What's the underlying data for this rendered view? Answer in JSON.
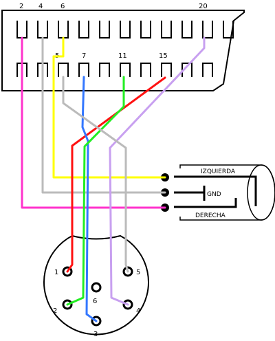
{
  "scart": {
    "top_pins": [
      "2",
      "4",
      "6",
      "20"
    ],
    "bottom_pins": [
      "5",
      "7",
      "11",
      "15"
    ]
  },
  "jack": {
    "left_label": "IZQUIERDA",
    "gnd_label": "GND",
    "right_label": "DERECHA"
  },
  "din": {
    "pins": [
      "1",
      "2",
      "3",
      "4",
      "5",
      "6"
    ]
  },
  "colors": {
    "magenta": "#ff33cc",
    "gray": "#bbbbbb",
    "yellow": "#ffff00",
    "red": "#ff1111",
    "blue": "#3377ff",
    "green": "#22ee22",
    "violet": "#c8a0f0",
    "outline": "#000000"
  }
}
